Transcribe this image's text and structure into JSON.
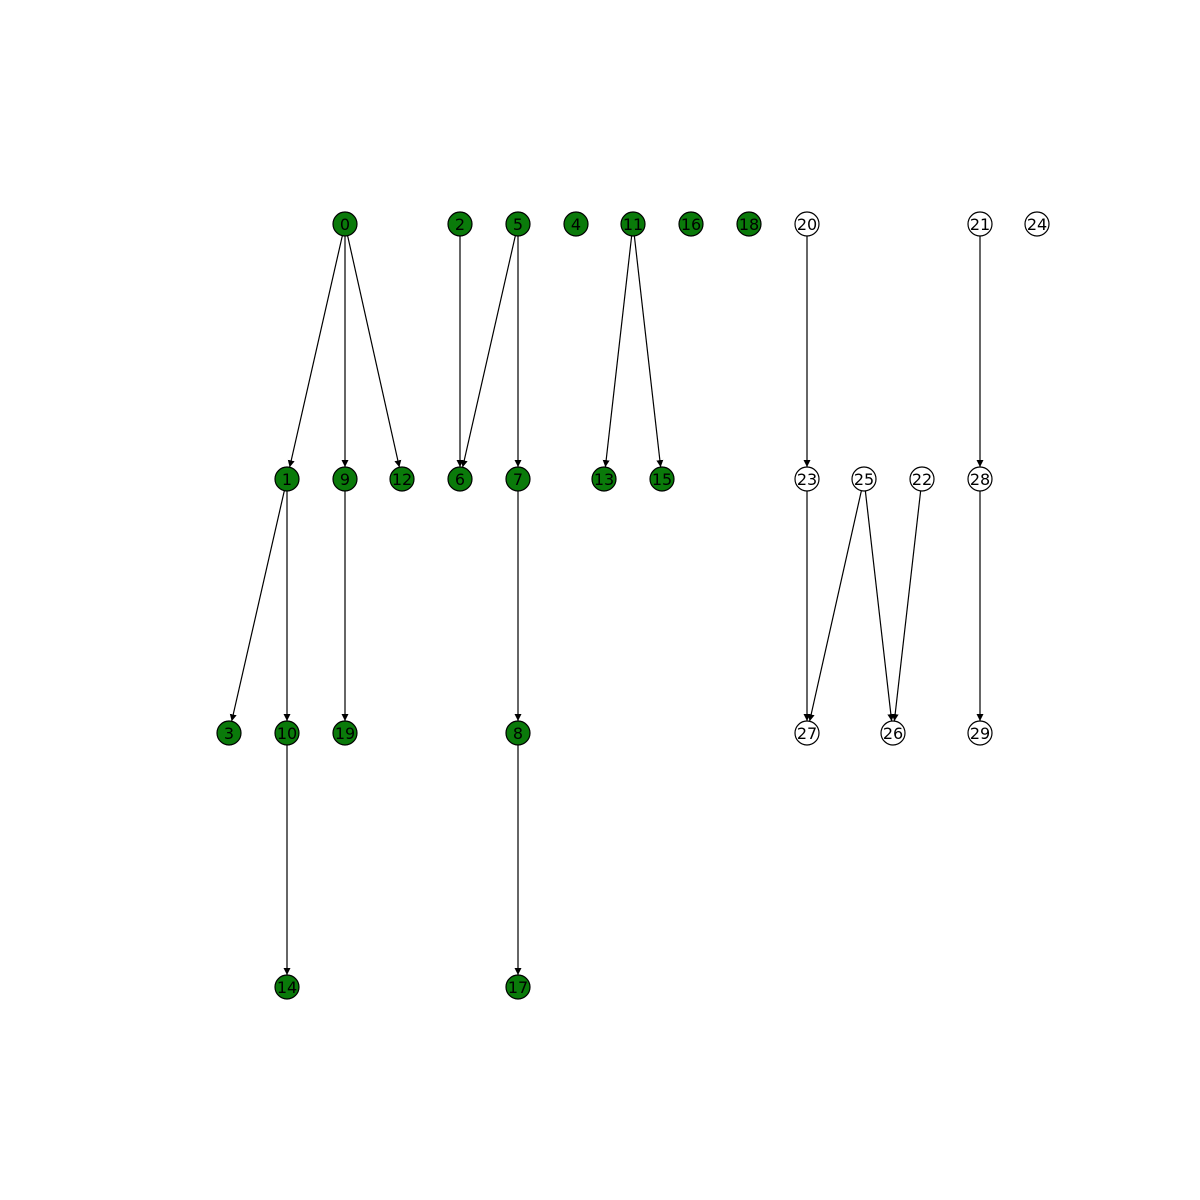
{
  "colors": {
    "filled": "#0a7a0a",
    "empty": "#ffffff",
    "stroke": "#000000"
  },
  "nodes": [
    {
      "id": "0",
      "group": "filled"
    },
    {
      "id": "2",
      "group": "filled"
    },
    {
      "id": "5",
      "group": "filled"
    },
    {
      "id": "4",
      "group": "filled"
    },
    {
      "id": "11",
      "group": "filled"
    },
    {
      "id": "16",
      "group": "filled"
    },
    {
      "id": "18",
      "group": "filled"
    },
    {
      "id": "20",
      "group": "empty"
    },
    {
      "id": "21",
      "group": "empty"
    },
    {
      "id": "24",
      "group": "empty"
    },
    {
      "id": "1",
      "group": "filled"
    },
    {
      "id": "9",
      "group": "filled"
    },
    {
      "id": "12",
      "group": "filled"
    },
    {
      "id": "6",
      "group": "filled"
    },
    {
      "id": "7",
      "group": "filled"
    },
    {
      "id": "13",
      "group": "filled"
    },
    {
      "id": "15",
      "group": "filled"
    },
    {
      "id": "23",
      "group": "empty"
    },
    {
      "id": "25",
      "group": "empty"
    },
    {
      "id": "22",
      "group": "empty"
    },
    {
      "id": "28",
      "group": "empty"
    },
    {
      "id": "3",
      "group": "filled"
    },
    {
      "id": "10",
      "group": "filled"
    },
    {
      "id": "19",
      "group": "filled"
    },
    {
      "id": "8",
      "group": "filled"
    },
    {
      "id": "27",
      "group": "empty"
    },
    {
      "id": "26",
      "group": "empty"
    },
    {
      "id": "29",
      "group": "empty"
    },
    {
      "id": "14",
      "group": "filled"
    },
    {
      "id": "17",
      "group": "filled"
    }
  ],
  "edges": [
    {
      "from": "0",
      "to": "1"
    },
    {
      "from": "0",
      "to": "9"
    },
    {
      "from": "0",
      "to": "12"
    },
    {
      "from": "2",
      "to": "6"
    },
    {
      "from": "5",
      "to": "6"
    },
    {
      "from": "5",
      "to": "7"
    },
    {
      "from": "11",
      "to": "13"
    },
    {
      "from": "11",
      "to": "15"
    },
    {
      "from": "20",
      "to": "23"
    },
    {
      "from": "21",
      "to": "28"
    },
    {
      "from": "1",
      "to": "3"
    },
    {
      "from": "1",
      "to": "10"
    },
    {
      "from": "9",
      "to": "19"
    },
    {
      "from": "7",
      "to": "8"
    },
    {
      "from": "23",
      "to": "27"
    },
    {
      "from": "25",
      "to": "27"
    },
    {
      "from": "25",
      "to": "26"
    },
    {
      "from": "22",
      "to": "26"
    },
    {
      "from": "28",
      "to": "29"
    },
    {
      "from": "10",
      "to": "14"
    },
    {
      "from": "8",
      "to": "17"
    }
  ]
}
